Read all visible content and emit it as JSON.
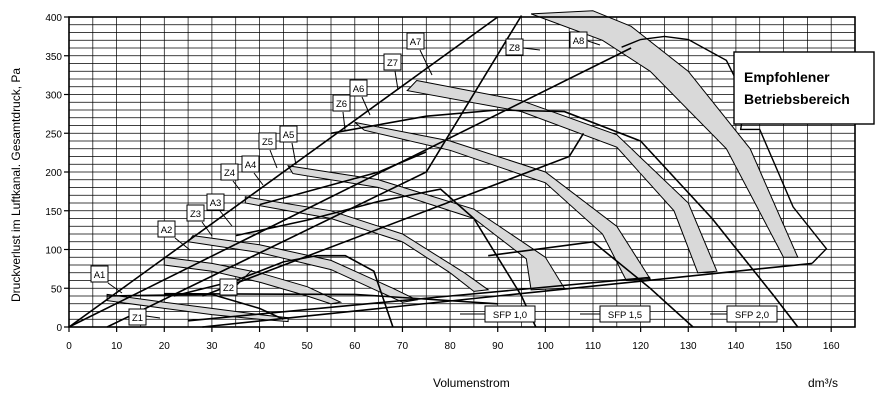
{
  "chart_data": {
    "type": "line",
    "title": "",
    "xlabel": "Volumenstrom",
    "xunit": "dm³/s",
    "ylabel": "Druckverlust im Luftkanal. Gesamtdruck, Pa",
    "xlim": [
      0,
      165
    ],
    "ylim": [
      0,
      400
    ],
    "xticks": [
      0,
      10,
      20,
      30,
      40,
      50,
      60,
      70,
      80,
      90,
      100,
      110,
      120,
      130,
      140,
      150,
      160
    ],
    "yticks": [
      0,
      50,
      100,
      150,
      200,
      250,
      300,
      350,
      400
    ],
    "grid": true,
    "legend_box": {
      "line1": "Empfohlener",
      "line2": "Betriebsbereich"
    },
    "recommended_area_outline": [
      [
        116,
        361
      ],
      [
        120,
        371
      ],
      [
        125,
        375
      ],
      [
        130,
        371
      ],
      [
        138,
        344
      ],
      [
        142,
        295
      ],
      [
        141,
        255
      ],
      [
        145,
        255
      ],
      [
        152,
        155
      ],
      [
        159,
        101
      ],
      [
        156,
        82
      ]
    ],
    "fan_bands": [
      {
        "upper": [
          [
            8,
            42
          ],
          [
            20,
            32
          ],
          [
            30,
            24
          ],
          [
            40,
            16
          ],
          [
            46,
            12
          ]
        ],
        "lower": [
          [
            8,
            34
          ],
          [
            20,
            24
          ],
          [
            30,
            16
          ],
          [
            40,
            10
          ],
          [
            46,
            7
          ]
        ]
      },
      {
        "upper": [
          [
            20,
            90
          ],
          [
            30,
            82
          ],
          [
            40,
            70
          ],
          [
            50,
            52
          ],
          [
            57,
            32
          ]
        ],
        "lower": [
          [
            20,
            80
          ],
          [
            30,
            72
          ],
          [
            40,
            58
          ],
          [
            50,
            40
          ],
          [
            55,
            30
          ]
        ]
      },
      {
        "upper": [
          [
            26,
            118
          ],
          [
            40,
            106
          ],
          [
            55,
            86
          ],
          [
            68,
            50
          ],
          [
            73,
            35
          ]
        ],
        "lower": [
          [
            25,
            110
          ],
          [
            40,
            96
          ],
          [
            55,
            74
          ],
          [
            65,
            46
          ],
          [
            70,
            32
          ]
        ]
      },
      {
        "upper": [
          [
            37,
            168
          ],
          [
            55,
            150
          ],
          [
            70,
            120
          ],
          [
            83,
            70
          ],
          [
            88,
            48
          ]
        ],
        "lower": [
          [
            37,
            160
          ],
          [
            55,
            140
          ],
          [
            70,
            110
          ],
          [
            80,
            70
          ],
          [
            85,
            46
          ]
        ]
      },
      {
        "upper": [
          [
            46,
            208
          ],
          [
            65,
            190
          ],
          [
            85,
            152
          ],
          [
            100,
            90
          ],
          [
            104,
            50
          ]
        ],
        "lower": [
          [
            47,
            198
          ],
          [
            65,
            180
          ],
          [
            85,
            140
          ],
          [
            96,
            88
          ],
          [
            97,
            48
          ]
        ]
      },
      {
        "upper": [
          [
            60,
            264
          ],
          [
            80,
            240
          ],
          [
            100,
            200
          ],
          [
            115,
            130
          ],
          [
            122,
            62
          ]
        ],
        "lower": [
          [
            62,
            254
          ],
          [
            80,
            228
          ],
          [
            100,
            186
          ],
          [
            112,
            120
          ],
          [
            117,
            60
          ]
        ]
      },
      {
        "upper": [
          [
            73,
            318
          ],
          [
            95,
            292
          ],
          [
            115,
            248
          ],
          [
            130,
            160
          ],
          [
            136,
            72
          ]
        ],
        "lower": [
          [
            71,
            305
          ],
          [
            95,
            278
          ],
          [
            115,
            232
          ],
          [
            127,
            150
          ],
          [
            132,
            70
          ]
        ]
      },
      {
        "upper": [
          [
            110,
            408
          ],
          [
            118,
            388
          ],
          [
            130,
            330
          ],
          [
            143,
            230
          ],
          [
            153,
            90
          ]
        ],
        "lower": [
          [
            97,
            404
          ],
          [
            112,
            370
          ],
          [
            122,
            330
          ],
          [
            138,
            230
          ],
          [
            150,
            90
          ]
        ]
      }
    ],
    "system_curves": [
      {
        "points": [
          [
            8,
            40
          ],
          [
            30,
            42
          ],
          [
            40,
            24
          ],
          [
            45,
            10
          ]
        ]
      },
      {
        "points": [
          [
            22,
            40
          ],
          [
            35,
            60
          ],
          [
            45,
            84
          ],
          [
            52,
            92
          ],
          [
            58,
            92
          ],
          [
            64,
            72
          ],
          [
            68,
            0
          ]
        ]
      },
      {
        "points": [
          [
            35,
            118
          ],
          [
            50,
            138
          ],
          [
            65,
            162
          ],
          [
            78,
            178
          ],
          [
            85,
            140
          ],
          [
            95,
            40
          ],
          [
            98,
            0
          ]
        ]
      },
      {
        "points": [
          [
            55,
            250
          ],
          [
            75,
            272
          ],
          [
            90,
            280
          ],
          [
            104,
            278
          ],
          [
            120,
            240
          ],
          [
            135,
            140
          ],
          [
            148,
            40
          ],
          [
            153,
            0
          ]
        ]
      },
      {
        "points": [
          [
            88,
            92
          ],
          [
            110,
            110
          ],
          [
            122,
            50
          ],
          [
            131,
            0
          ]
        ]
      }
    ],
    "diagonal_lines": [
      {
        "points": [
          [
            0,
            0
          ],
          [
            90,
            400
          ]
        ]
      },
      {
        "points": [
          [
            0,
            0
          ],
          [
            118,
            360
          ]
        ]
      },
      {
        "points": [
          [
            8,
            0
          ],
          [
            75,
            200
          ],
          [
            95,
            402
          ]
        ]
      },
      {
        "points": [
          [
            28,
            40
          ],
          [
            105,
            220
          ],
          [
            108,
            250
          ]
        ]
      },
      {
        "points": [
          [
            40,
            158
          ],
          [
            65,
            200
          ],
          [
            75,
            226
          ]
        ]
      }
    ],
    "sfp_lines": [
      {
        "label": "SFP 1,0",
        "points": [
          [
            20,
            43
          ],
          [
            60,
            42
          ],
          [
            90,
            30
          ]
        ]
      },
      {
        "label": "SFP 1,5",
        "points": [
          [
            25,
            8
          ],
          [
            80,
            40
          ],
          [
            122,
            64
          ]
        ]
      },
      {
        "label": "SFP 2,0",
        "points": [
          [
            28,
            0
          ],
          [
            90,
            40
          ],
          [
            156,
            82
          ]
        ]
      }
    ],
    "curve_labels": [
      "A1",
      "A2",
      "A3",
      "A4",
      "A5",
      "A6",
      "A7",
      "A8",
      "Z1",
      "Z2",
      "Z3",
      "Z4",
      "Z5",
      "Z6",
      "Z7",
      "Z8"
    ]
  }
}
